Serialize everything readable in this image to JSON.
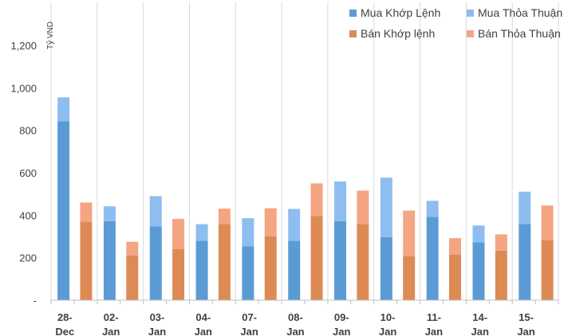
{
  "chart_data": {
    "type": "bar",
    "stacked": true,
    "title": "",
    "ylabel": "Tỷ VND",
    "ylim": [
      0,
      1200
    ],
    "yticks": [
      0,
      200,
      400,
      600,
      800,
      1000,
      1200
    ],
    "ytick_labels": [
      "-",
      "200",
      "400",
      "600",
      "800",
      "1,000",
      "1,200"
    ],
    "grid": true,
    "legend_position": "top-right",
    "groups": [
      {
        "top": "28-",
        "bottom": "Dec"
      },
      {
        "top": "02-",
        "bottom": "Jan"
      },
      {
        "top": "03-",
        "bottom": "Jan"
      },
      {
        "top": "04-",
        "bottom": "Jan"
      },
      {
        "top": "07-",
        "bottom": "Jan"
      },
      {
        "top": "08-",
        "bottom": "Jan"
      },
      {
        "top": "09-",
        "bottom": "Jan"
      },
      {
        "top": "10-",
        "bottom": "Jan"
      },
      {
        "top": "11-",
        "bottom": "Jan"
      },
      {
        "top": "14-",
        "bottom": "Jan"
      },
      {
        "top": "15-",
        "bottom": "Jan"
      }
    ],
    "series": [
      {
        "name": "Mua Khớp Lệnh",
        "color": "#5B9BD5",
        "side": "buy",
        "layer": "base",
        "values": [
          842,
          372,
          347,
          280,
          253,
          280,
          372,
          297,
          393,
          272,
          358
        ]
      },
      {
        "name": "Mua Thỏa Thuận",
        "color": "#8DBEEF",
        "side": "buy",
        "layer": "top",
        "values": [
          113,
          70,
          143,
          78,
          133,
          150,
          187,
          280,
          75,
          80,
          153
        ]
      },
      {
        "name": "Bán Khớp lệnh",
        "color": "#DE8A55",
        "side": "sell",
        "layer": "base",
        "values": [
          370,
          210,
          240,
          358,
          300,
          397,
          358,
          207,
          215,
          233,
          283
        ]
      },
      {
        "name": "Bán Thỏa Thuận",
        "color": "#F4A582",
        "side": "sell",
        "layer": "top",
        "values": [
          90,
          65,
          143,
          73,
          133,
          153,
          158,
          215,
          77,
          77,
          163
        ]
      }
    ]
  }
}
